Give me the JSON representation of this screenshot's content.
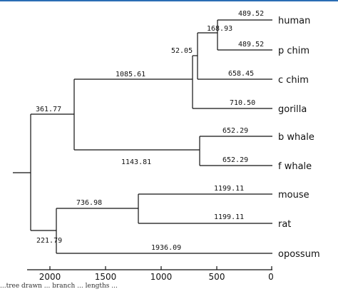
{
  "tree": {
    "taxa": [
      "human",
      "p chim",
      "c chim",
      "gorilla",
      "b whale",
      "f whale",
      "mouse",
      "rat",
      "opossum"
    ],
    "branch_lengths": {
      "human": "489.52",
      "p_chim": "489.52",
      "human_chim_node": "168.93",
      "c_chim": "658.45",
      "great_ape_node": "52.05",
      "gorilla": "710.50",
      "primate_node": "1085.61",
      "b_whale": "652.29",
      "f_whale": "652.29",
      "whale_node": "1143.81",
      "primate_whale_node": "361.77",
      "mouse": "1199.11",
      "rat": "1199.11",
      "rodent_node": "736.98",
      "rodent_opossum_node": "221.79",
      "opossum": "1936.09"
    }
  },
  "axis": {
    "ticks": [
      "2000",
      "1500",
      "1000",
      "500",
      "0"
    ]
  },
  "caption": "...tree drawn ... branch ... lengths ..."
}
